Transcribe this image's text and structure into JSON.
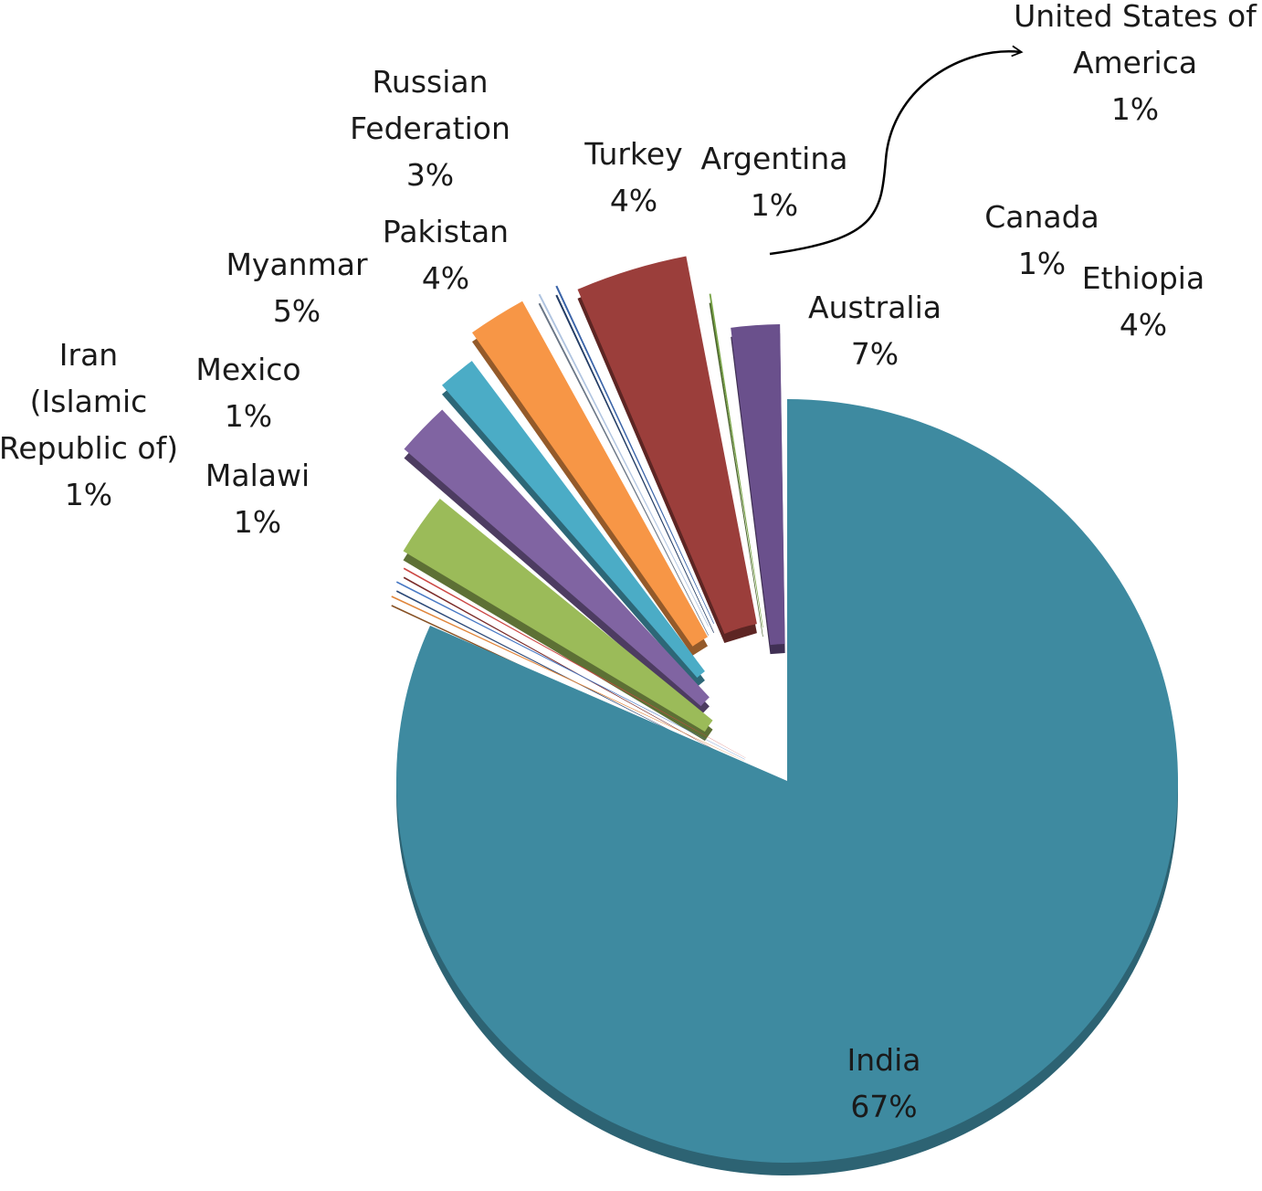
{
  "chart_data": {
    "type": "pie",
    "style": "3d-exploded",
    "slices": [
      {
        "name": "India",
        "value": 67,
        "label": "67%",
        "color": "#3e8aa0"
      },
      {
        "name": "Malawi",
        "value": 1,
        "label": "1%",
        "color": "#e0853a"
      },
      {
        "name": "Iran (Islamic Republic of)",
        "label_lines": [
          "Iran",
          "(Islamic",
          "Republic of)"
        ],
        "value": 1,
        "label": "1%",
        "color": "#4778c4"
      },
      {
        "name": "Mexico",
        "value": 1,
        "label": "1%",
        "color": "#cc4844"
      },
      {
        "name": "Myanmar",
        "value": 5,
        "label": "5%",
        "color": "#9bbb59"
      },
      {
        "name": "Pakistan",
        "value": 4,
        "label": "4%",
        "color": "#8064a2"
      },
      {
        "name": "Russian Federation",
        "label_lines": [
          "Russian",
          "Federation"
        ],
        "value": 3,
        "label": "3%",
        "color": "#4bacc6"
      },
      {
        "name": "Turkey",
        "value": 4,
        "label": "4%",
        "color": "#f79646"
      },
      {
        "name": "Argentina",
        "value": 1,
        "label": "1%",
        "color": "#b0c4e0"
      },
      {
        "name": "United States of America",
        "label_lines": [
          "United States of",
          "America"
        ],
        "value": 1,
        "label": "1%",
        "color": "#3b64a8"
      },
      {
        "name": "Australia",
        "value": 7,
        "label": "7%",
        "color": "#9b3e3b"
      },
      {
        "name": "Canada",
        "value": 1,
        "label": "1%",
        "color": "#79a448"
      },
      {
        "name": "Ethiopia",
        "value": 4,
        "label": "4%",
        "color": "#6a508c"
      }
    ]
  }
}
